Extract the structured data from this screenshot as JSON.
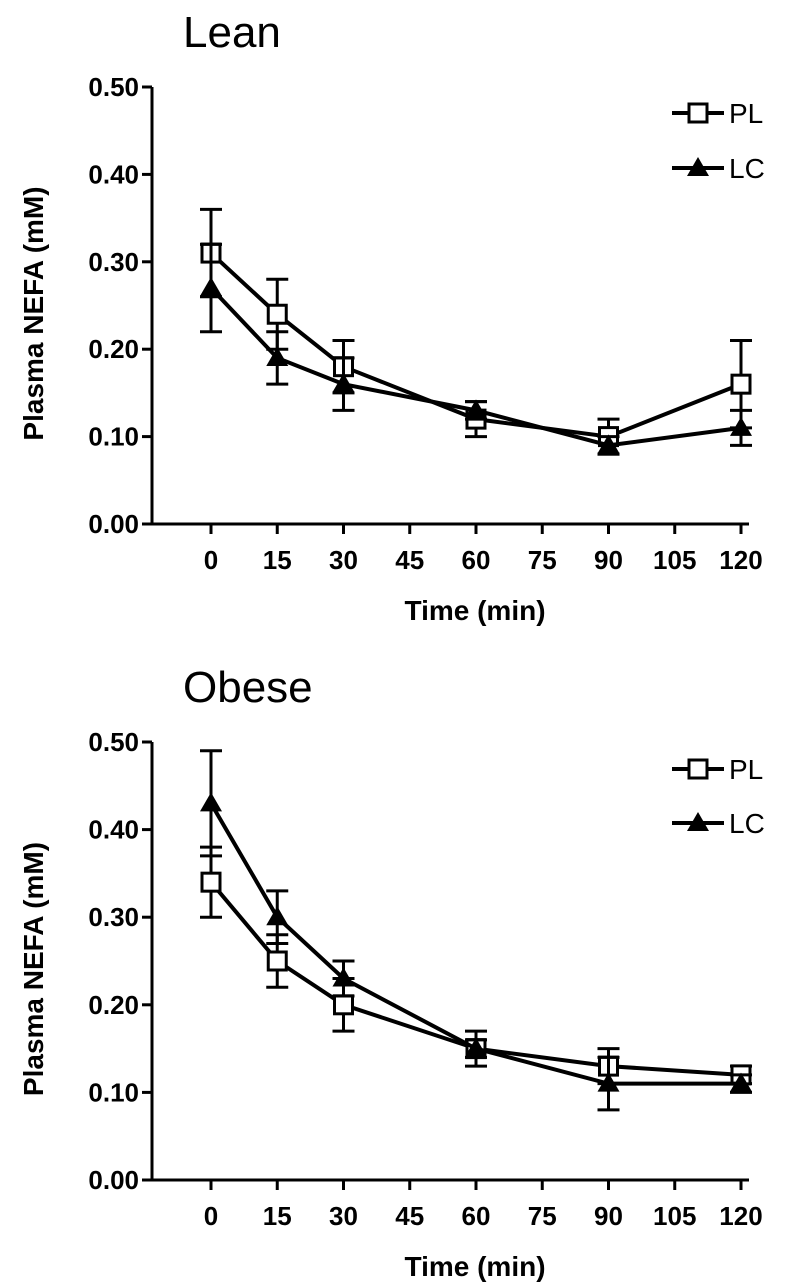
{
  "chart_data": [
    {
      "type": "line",
      "title": "Lean",
      "xlabel": "Time (min)",
      "ylabel": "Plasma NEFA (mM)",
      "xlim": [
        -15,
        120
      ],
      "ylim": [
        0,
        0.5
      ],
      "x_ticks": [
        "0",
        "15",
        "30",
        "45",
        "60",
        "75",
        "90",
        "105",
        "120"
      ],
      "y_ticks": [
        "0.00",
        "0.10",
        "0.20",
        "0.30",
        "0.40",
        "0.50"
      ],
      "legend_position": "top-right",
      "grid": false,
      "x": [
        0,
        15,
        30,
        60,
        90,
        120
      ],
      "series": [
        {
          "name": "PL",
          "marker": "open-square",
          "values": [
            0.31,
            0.24,
            0.18,
            0.12,
            0.1,
            0.16
          ],
          "errors": [
            0.05,
            0.04,
            0.03,
            0.02,
            0.02,
            0.05
          ]
        },
        {
          "name": "LC",
          "marker": "filled-triangle",
          "values": [
            0.27,
            0.19,
            0.16,
            0.13,
            0.09,
            0.11
          ],
          "errors": [
            0.05,
            0.03,
            0.03,
            0.01,
            0.01,
            0.02
          ]
        }
      ]
    },
    {
      "type": "line",
      "title": "Obese",
      "xlabel": "Time (min)",
      "ylabel": "Plasma NEFA (mM)",
      "xlim": [
        -15,
        120
      ],
      "ylim": [
        0,
        0.5
      ],
      "x_ticks": [
        "0",
        "15",
        "30",
        "45",
        "60",
        "75",
        "90",
        "105",
        "120"
      ],
      "y_ticks": [
        "0.00",
        "0.10",
        "0.20",
        "0.30",
        "0.40",
        "0.50"
      ],
      "legend_position": "top-right",
      "grid": false,
      "x": [
        0,
        15,
        30,
        60,
        90,
        120
      ],
      "series": [
        {
          "name": "PL",
          "marker": "open-square",
          "values": [
            0.34,
            0.25,
            0.2,
            0.15,
            0.13,
            0.12
          ],
          "errors": [
            0.04,
            0.03,
            0.03,
            0.02,
            0.02,
            0.01
          ]
        },
        {
          "name": "LC",
          "marker": "filled-triangle",
          "values": [
            0.43,
            0.3,
            0.23,
            0.15,
            0.11,
            0.11
          ],
          "errors": [
            0.06,
            0.03,
            0.02,
            0.01,
            0.03,
            0.01
          ]
        }
      ]
    }
  ]
}
